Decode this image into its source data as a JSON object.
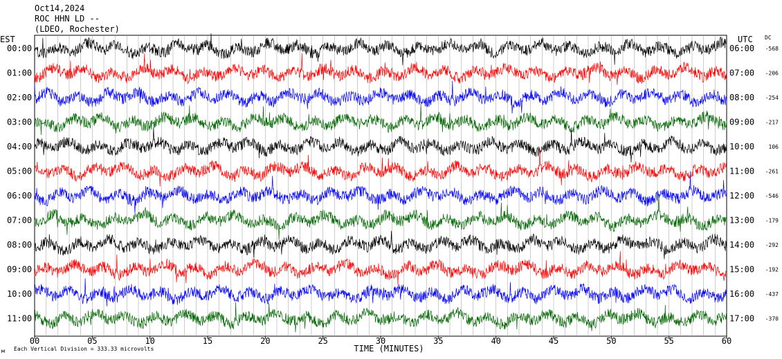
{
  "header": {
    "date": "Oct14,2024",
    "station": "ROC HHN LD --",
    "network": "(LDEO, Rochester)"
  },
  "chart_data": {
    "type": "line",
    "title": "",
    "xlabel": "TIME (MINUTES)",
    "xlim": [
      0,
      60
    ],
    "x_ticks": [
      "00",
      "05",
      "10",
      "15",
      "20",
      "25",
      "30",
      "35",
      "40",
      "45",
      "50",
      "55",
      "60"
    ],
    "left_axis_label": "EST",
    "right_axis_label": "UTC",
    "dc_label": "DC",
    "est_labels": [
      "00:00",
      "01:00",
      "02:00",
      "03:00",
      "04:00",
      "05:00",
      "06:00",
      "07:00",
      "08:00",
      "09:00",
      "10:00",
      "11:00"
    ],
    "utc_labels": [
      "06:00",
      "07:00",
      "08:00",
      "09:00",
      "10:00",
      "11:00",
      "12:00",
      "13:00",
      "14:00",
      "15:00",
      "16:00",
      "17:00"
    ],
    "dc_values": [
      "-568",
      "-206",
      "-254",
      "-217",
      "106",
      "-261",
      "-546",
      "-179",
      "-292",
      "-192",
      "-437",
      "-370"
    ],
    "trace_colors": [
      "#000000",
      "#ff0000",
      "#0000ff",
      "#006600"
    ],
    "grid": "vertical lines every minute",
    "scale_note": "Each Vertical Division = 333.33 microvolts",
    "corner_mark": "м"
  }
}
